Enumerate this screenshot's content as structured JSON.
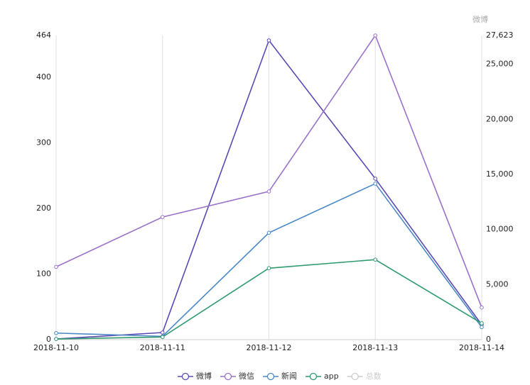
{
  "chart_data": {
    "type": "line",
    "categories": [
      "2018-11-10",
      "2018-11-11",
      "2018-11-12",
      "2018-11-13",
      "2018-11-14"
    ],
    "y2_axis_label": "微博",
    "ylim": [
      0,
      464
    ],
    "yticks": [
      0,
      100,
      200,
      300,
      400,
      464
    ],
    "y2lim": [
      0,
      27623
    ],
    "y2ticks": [
      0,
      {
        "value": 5000,
        "label": "5,000"
      },
      {
        "value": 10000,
        "label": "10,000"
      },
      {
        "value": 15000,
        "label": "15,000"
      },
      {
        "value": 20000,
        "label": "20,000"
      },
      {
        "value": 25000,
        "label": "25,000"
      },
      {
        "value": 27623,
        "label": "27,623"
      }
    ],
    "series": [
      {
        "name": "微博",
        "color": "#5a4bb3",
        "axis": "y2",
        "values": [
          60,
          644,
          27173,
          14617,
          1352
        ]
      },
      {
        "name": "微信",
        "color": "#9a72c9",
        "values": [
          111,
          187,
          226,
          464,
          49
        ]
      },
      {
        "name": "新闻",
        "color": "#4a88c6",
        "values": [
          10,
          5,
          163,
          238,
          19
        ]
      },
      {
        "name": "app",
        "color": "#2e9a6e",
        "values": [
          1,
          4,
          109,
          122,
          25
        ]
      }
    ],
    "inactive_legend": {
      "name": "总数",
      "color": "#cccccc"
    },
    "grid": "x"
  }
}
